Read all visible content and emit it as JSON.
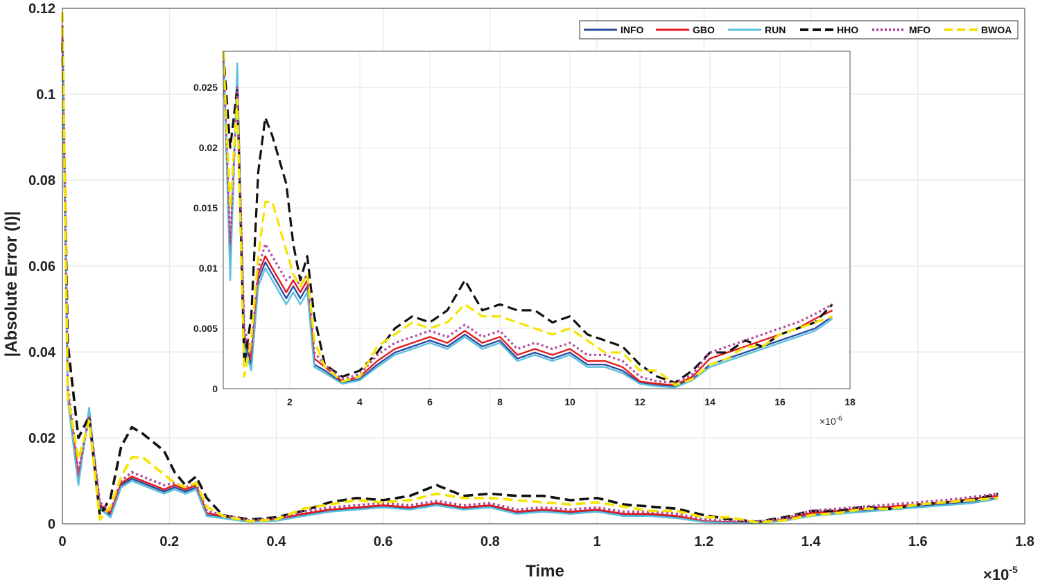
{
  "chart_data": {
    "type": "line",
    "title": "",
    "xlabel": "Time",
    "ylabel": "|Absolute Error (I)|",
    "x_multiplier": "×10",
    "x_exponent": "-5",
    "xlim": [
      0,
      1.8
    ],
    "ylim": [
      0,
      0.12
    ],
    "xticks": [
      "0",
      "0.2",
      "0.4",
      "0.6",
      "0.8",
      "1",
      "1.2",
      "1.4",
      "1.6",
      "1.8"
    ],
    "yticks": [
      "0",
      "0.02",
      "0.04",
      "0.06",
      "0.08",
      "0.1",
      "0.12"
    ],
    "grid": true,
    "legend_position": "top-right",
    "series": [
      {
        "name": "INFO",
        "color": "#2b4da0",
        "style": "solid",
        "x": [
          0,
          0.01,
          0.03,
          0.05,
          0.07,
          0.09,
          0.11,
          0.13,
          0.15,
          0.17,
          0.19,
          0.21,
          0.23,
          0.25,
          0.27,
          0.3,
          0.35,
          0.4,
          0.45,
          0.5,
          0.55,
          0.6,
          0.65,
          0.7,
          0.75,
          0.8,
          0.85,
          0.9,
          0.95,
          1.0,
          1.05,
          1.1,
          1.15,
          1.2,
          1.25,
          1.3,
          1.35,
          1.4,
          1.45,
          1.5,
          1.55,
          1.6,
          1.65,
          1.7,
          1.75
        ],
        "y": [
          0.113,
          0.03,
          0.01,
          0.026,
          0.004,
          0.002,
          0.009,
          0.0105,
          0.0095,
          0.0085,
          0.0075,
          0.0085,
          0.0075,
          0.0085,
          0.002,
          0.0015,
          0.0005,
          0.0008,
          0.002,
          0.003,
          0.0035,
          0.004,
          0.0035,
          0.0045,
          0.0035,
          0.004,
          0.0025,
          0.003,
          0.0025,
          0.003,
          0.002,
          0.002,
          0.0015,
          0.0005,
          0.0003,
          0.0002,
          0.0008,
          0.002,
          0.0025,
          0.003,
          0.0035,
          0.004,
          0.0045,
          0.005,
          0.006
        ]
      },
      {
        "name": "GBO",
        "color": "#e41a1c",
        "style": "solid",
        "x": [
          0,
          0.01,
          0.03,
          0.05,
          0.07,
          0.09,
          0.11,
          0.13,
          0.15,
          0.17,
          0.19,
          0.21,
          0.23,
          0.25,
          0.27,
          0.3,
          0.35,
          0.4,
          0.45,
          0.5,
          0.55,
          0.6,
          0.65,
          0.7,
          0.75,
          0.8,
          0.85,
          0.9,
          0.95,
          1.0,
          1.05,
          1.1,
          1.15,
          1.2,
          1.25,
          1.3,
          1.35,
          1.4,
          1.45,
          1.5,
          1.55,
          1.6,
          1.65,
          1.7,
          1.75
        ],
        "y": [
          0.114,
          0.031,
          0.011,
          0.026,
          0.0045,
          0.0025,
          0.0095,
          0.011,
          0.01,
          0.009,
          0.008,
          0.009,
          0.008,
          0.009,
          0.0025,
          0.0018,
          0.0006,
          0.001,
          0.0023,
          0.0033,
          0.0038,
          0.0043,
          0.0038,
          0.0048,
          0.0038,
          0.0043,
          0.0028,
          0.0033,
          0.0028,
          0.0033,
          0.0023,
          0.0023,
          0.0018,
          0.0006,
          0.0004,
          0.0003,
          0.001,
          0.0025,
          0.003,
          0.0035,
          0.004,
          0.0045,
          0.005,
          0.0058,
          0.0065
        ]
      },
      {
        "name": "RUN",
        "color": "#5bc0de",
        "style": "solid",
        "x": [
          0,
          0.01,
          0.03,
          0.05,
          0.07,
          0.09,
          0.11,
          0.13,
          0.15,
          0.17,
          0.19,
          0.21,
          0.23,
          0.25,
          0.27,
          0.3,
          0.35,
          0.4,
          0.45,
          0.5,
          0.55,
          0.6,
          0.65,
          0.7,
          0.75,
          0.8,
          0.85,
          0.9,
          0.95,
          1.0,
          1.05,
          1.1,
          1.15,
          1.2,
          1.25,
          1.3,
          1.35,
          1.4,
          1.45,
          1.5,
          1.55,
          1.6,
          1.65,
          1.7,
          1.75
        ],
        "y": [
          0.112,
          0.029,
          0.009,
          0.027,
          0.0035,
          0.0015,
          0.0085,
          0.01,
          0.009,
          0.008,
          0.007,
          0.008,
          0.007,
          0.008,
          0.0018,
          0.0013,
          0.0004,
          0.0007,
          0.0018,
          0.0028,
          0.0033,
          0.0038,
          0.0033,
          0.0043,
          0.0033,
          0.0038,
          0.0023,
          0.0028,
          0.0023,
          0.0028,
          0.0018,
          0.0018,
          0.0013,
          0.0004,
          0.0002,
          0.0001,
          0.0007,
          0.0018,
          0.0023,
          0.0028,
          0.0033,
          0.0038,
          0.0043,
          0.0048,
          0.0058
        ]
      },
      {
        "name": "HHO",
        "color": "#111111",
        "style": "dashed",
        "x": [
          0,
          0.01,
          0.03,
          0.05,
          0.07,
          0.09,
          0.11,
          0.13,
          0.15,
          0.17,
          0.19,
          0.21,
          0.23,
          0.25,
          0.27,
          0.3,
          0.35,
          0.4,
          0.45,
          0.5,
          0.55,
          0.6,
          0.65,
          0.7,
          0.75,
          0.8,
          0.85,
          0.9,
          0.95,
          1.0,
          1.05,
          1.1,
          1.15,
          1.2,
          1.25,
          1.3,
          1.35,
          1.4,
          1.45,
          1.5,
          1.55,
          1.6,
          1.65,
          1.7,
          1.75
        ],
        "y": [
          0.112,
          0.042,
          0.02,
          0.025,
          0.002,
          0.006,
          0.018,
          0.0225,
          0.021,
          0.019,
          0.017,
          0.012,
          0.009,
          0.011,
          0.006,
          0.002,
          0.001,
          0.0015,
          0.003,
          0.005,
          0.006,
          0.0055,
          0.0065,
          0.009,
          0.0065,
          0.007,
          0.0065,
          0.0065,
          0.0055,
          0.006,
          0.0045,
          0.004,
          0.0035,
          0.002,
          0.001,
          0.0005,
          0.0015,
          0.003,
          0.003,
          0.004,
          0.0035,
          0.0045,
          0.005,
          0.0055,
          0.007
        ]
      },
      {
        "name": "MFO",
        "color": "#b5479c",
        "style": "dotted",
        "x": [
          0,
          0.01,
          0.03,
          0.05,
          0.07,
          0.09,
          0.11,
          0.13,
          0.15,
          0.17,
          0.19,
          0.21,
          0.23,
          0.25,
          0.27,
          0.3,
          0.35,
          0.4,
          0.45,
          0.5,
          0.55,
          0.6,
          0.65,
          0.7,
          0.75,
          0.8,
          0.85,
          0.9,
          0.95,
          1.0,
          1.05,
          1.1,
          1.15,
          1.2,
          1.25,
          1.3,
          1.35,
          1.4,
          1.45,
          1.5,
          1.55,
          1.6,
          1.65,
          1.7,
          1.75
        ],
        "y": [
          0.116,
          0.032,
          0.012,
          0.025,
          0.005,
          0.003,
          0.01,
          0.012,
          0.011,
          0.01,
          0.009,
          0.0095,
          0.0085,
          0.0095,
          0.003,
          0.002,
          0.0008,
          0.0012,
          0.0028,
          0.0038,
          0.0043,
          0.0048,
          0.0043,
          0.0053,
          0.0043,
          0.0048,
          0.0033,
          0.0038,
          0.0033,
          0.0038,
          0.0028,
          0.0028,
          0.0023,
          0.001,
          0.0006,
          0.0005,
          0.0012,
          0.003,
          0.0035,
          0.004,
          0.0045,
          0.005,
          0.0055,
          0.0062,
          0.007
        ]
      },
      {
        "name": "BWOA",
        "color": "#f5e400",
        "style": "dashed",
        "x": [
          0,
          0.01,
          0.03,
          0.05,
          0.07,
          0.09,
          0.11,
          0.13,
          0.15,
          0.17,
          0.19,
          0.21,
          0.23,
          0.25,
          0.27,
          0.3,
          0.35,
          0.4,
          0.45,
          0.5,
          0.55,
          0.6,
          0.65,
          0.7,
          0.75,
          0.8,
          0.85,
          0.9,
          0.95,
          1.0,
          1.05,
          1.1,
          1.15,
          1.2,
          1.25,
          1.3,
          1.35,
          1.4,
          1.45,
          1.5,
          1.55,
          1.6,
          1.65,
          1.7,
          1.75
        ],
        "y": [
          0.119,
          0.03,
          0.015,
          0.024,
          0.001,
          0.004,
          0.011,
          0.0155,
          0.0155,
          0.0135,
          0.0115,
          0.0095,
          0.0085,
          0.0095,
          0.004,
          0.0018,
          0.0006,
          0.001,
          0.0035,
          0.0045,
          0.0055,
          0.005,
          0.0055,
          0.007,
          0.006,
          0.006,
          0.0055,
          0.005,
          0.0045,
          0.005,
          0.004,
          0.003,
          0.003,
          0.0015,
          0.0015,
          0.0003,
          0.0008,
          0.002,
          0.0025,
          0.0035,
          0.0035,
          0.0045,
          0.005,
          0.0055,
          0.006
        ]
      }
    ],
    "inset": {
      "xlim": [
        0.1,
        18
      ],
      "ylim": [
        0,
        0.028
      ],
      "xticks": [
        "2",
        "4",
        "6",
        "8",
        "10",
        "12",
        "14",
        "16",
        "18"
      ],
      "yticks": [
        "0",
        "0.005",
        "0.01",
        "0.015",
        "0.02",
        "0.025"
      ],
      "x_multiplier": "×10",
      "x_exponent": "-6",
      "grid": true
    }
  }
}
